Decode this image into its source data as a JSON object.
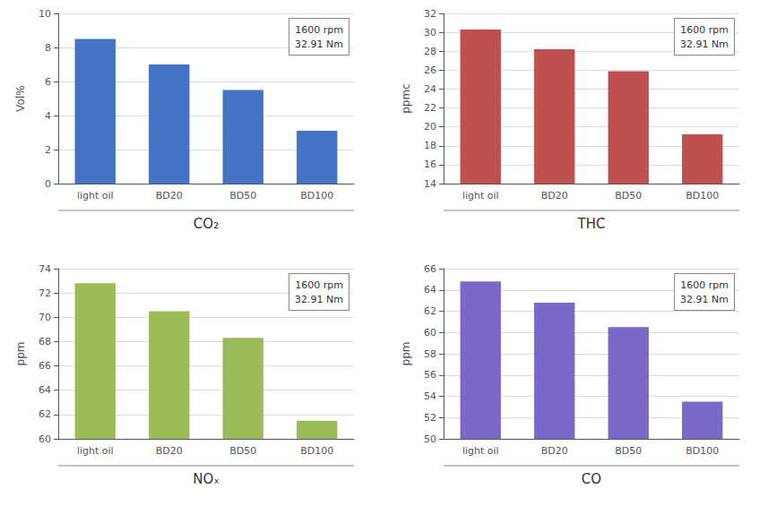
{
  "chart_data": [
    {
      "type": "bar",
      "title": "CO₂",
      "categories": [
        "light oil",
        "BD20",
        "BD50",
        "BD100"
      ],
      "values": [
        8.5,
        7.0,
        5.5,
        3.1
      ],
      "color": "#4472C4",
      "ylabel": "Vol%",
      "ylim": [
        0,
        10
      ],
      "yticks": [
        0,
        2,
        4,
        6,
        8,
        10
      ],
      "grid": true,
      "annotation": "1600 rpm\n32.91 Nm"
    },
    {
      "type": "bar",
      "title": "THC",
      "categories": [
        "light oil",
        "BD20",
        "BD50",
        "BD100"
      ],
      "values": [
        30.3,
        28.2,
        25.9,
        19.2
      ],
      "color": "#C0504D",
      "ylabel": "ppmc",
      "ylim": [
        14,
        32
      ],
      "yticks": [
        14,
        16,
        18,
        20,
        22,
        24,
        26,
        28,
        30,
        32
      ],
      "grid": true,
      "annotation": "1600 rpm\n32.91 Nm"
    },
    {
      "type": "bar",
      "title": "NOₓ",
      "categories": [
        "light oil",
        "BD20",
        "BD50",
        "BD100"
      ],
      "values": [
        72.8,
        70.5,
        68.3,
        61.5
      ],
      "color": "#9BBB59",
      "ylabel": "ppm",
      "ylim": [
        60,
        74
      ],
      "yticks": [
        60,
        62,
        64,
        66,
        68,
        70,
        72,
        74
      ],
      "grid": true,
      "annotation": "1600 rpm\n32.91 Nm"
    },
    {
      "type": "bar",
      "title": "CO",
      "categories": [
        "light oil",
        "BD20",
        "BD50",
        "BD100"
      ],
      "values": [
        64.8,
        62.8,
        60.5,
        53.5
      ],
      "color": "#7B68C8",
      "ylabel": "ppm",
      "ylim": [
        50,
        66
      ],
      "yticks": [
        50,
        52,
        54,
        56,
        58,
        60,
        62,
        64,
        66
      ],
      "grid": true,
      "annotation": "1600 rpm\n32.91 Nm"
    }
  ]
}
